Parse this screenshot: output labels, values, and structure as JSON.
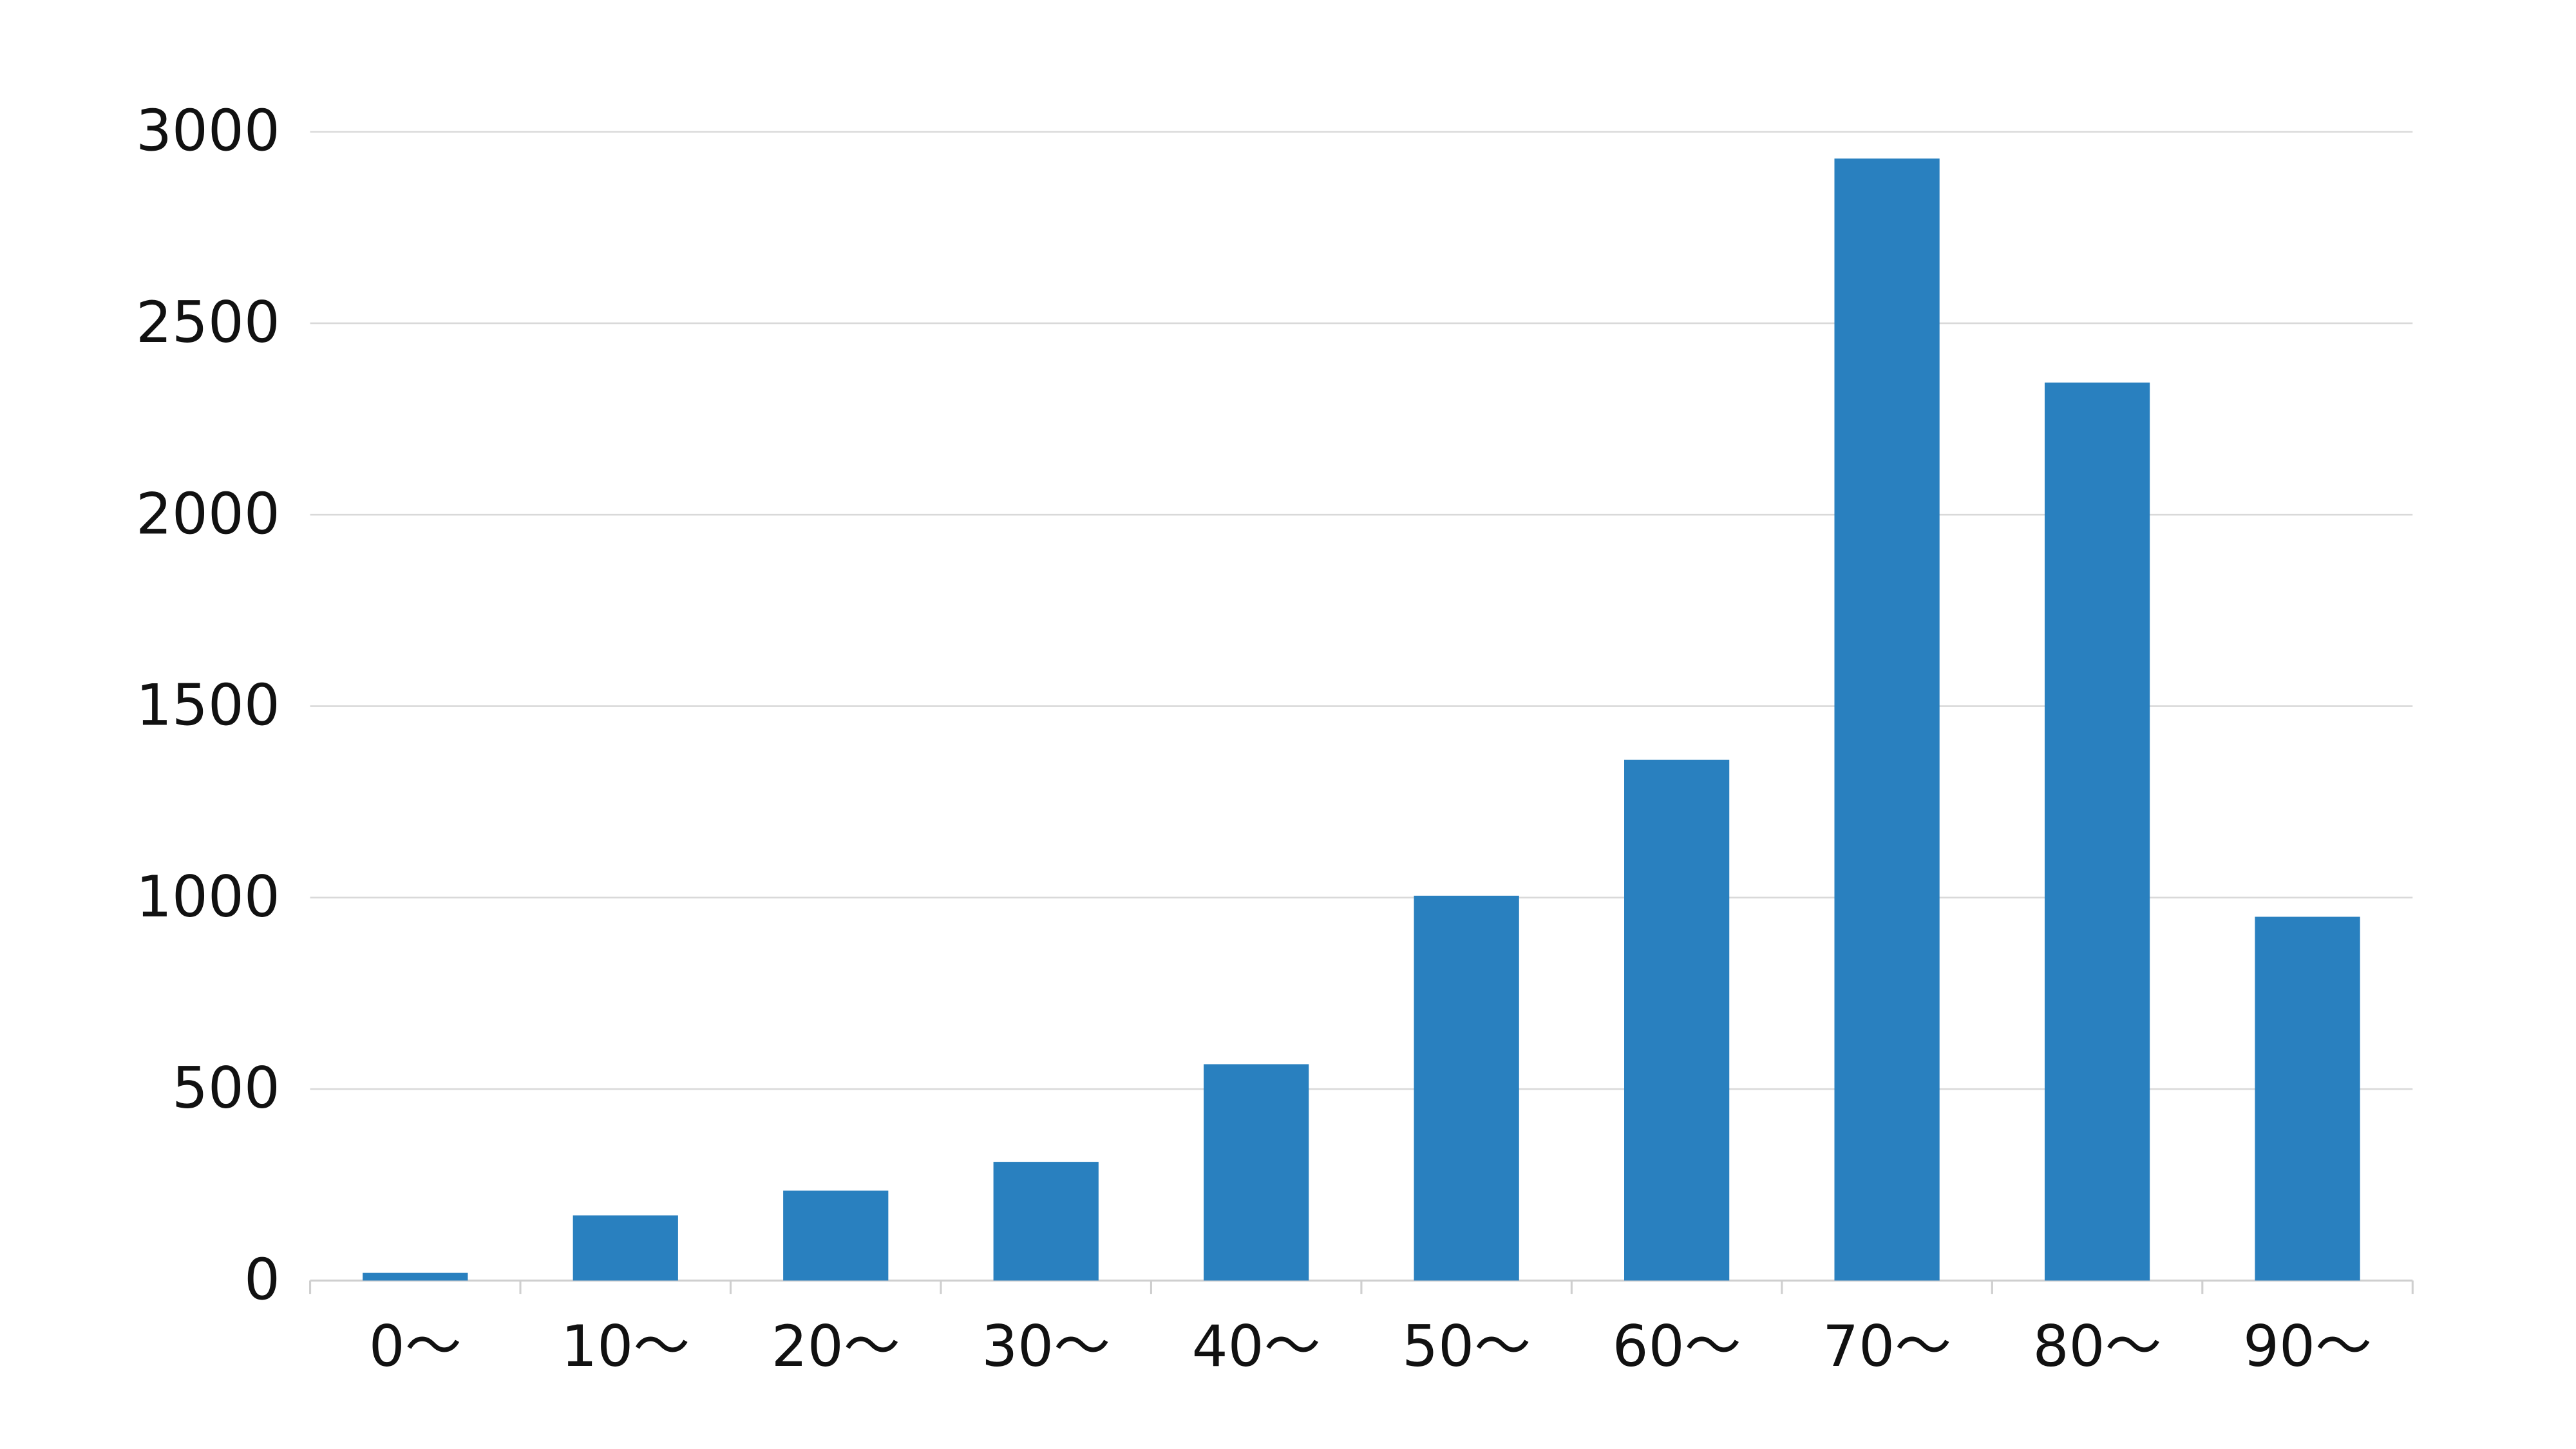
{
  "chart_data": {
    "type": "bar",
    "categories": [
      "0～",
      "10～",
      "20～",
      "30～",
      "40～",
      "50～",
      "60～",
      "70～",
      "80～",
      "90～"
    ],
    "values": [
      20,
      170,
      235,
      310,
      565,
      1005,
      1360,
      2930,
      2345,
      950
    ],
    "color": "#2980bf",
    "ylim": [
      0,
      3000
    ],
    "yticks": [
      0,
      500,
      1000,
      1500,
      2000,
      2500,
      3000
    ],
    "grid": true
  }
}
